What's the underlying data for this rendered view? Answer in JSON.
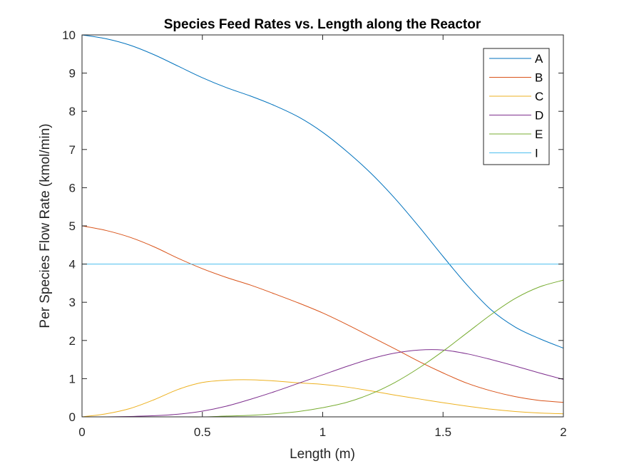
{
  "chart_data": {
    "type": "line",
    "title": "Species Feed Rates vs. Length along the Reactor",
    "xlabel": "Length (m)",
    "ylabel": "Per Species Flow Rate (kmol/min)",
    "xlim": [
      0,
      2
    ],
    "ylim": [
      0,
      10
    ],
    "xticks": [
      0,
      0.5,
      1,
      1.5,
      2
    ],
    "xtick_labels": [
      "0",
      "0.5",
      "1",
      "1.5",
      "2"
    ],
    "yticks": [
      0,
      1,
      2,
      3,
      4,
      5,
      6,
      7,
      8,
      9,
      10
    ],
    "ytick_labels": [
      "0",
      "1",
      "2",
      "3",
      "4",
      "5",
      "6",
      "7",
      "8",
      "9",
      "10"
    ],
    "grid": false,
    "legend_position": "top-right",
    "x": [
      0,
      0.1,
      0.2,
      0.3,
      0.4,
      0.5,
      0.6,
      0.7,
      0.8,
      0.9,
      1.0,
      1.1,
      1.2,
      1.3,
      1.4,
      1.5,
      1.6,
      1.7,
      1.8,
      1.9,
      2.0
    ],
    "series": [
      {
        "name": "A",
        "color": "#0072BD",
        "values": [
          10.0,
          9.9,
          9.73,
          9.48,
          9.18,
          8.88,
          8.62,
          8.4,
          8.15,
          7.85,
          7.45,
          6.95,
          6.38,
          5.72,
          4.98,
          4.2,
          3.45,
          2.8,
          2.35,
          2.05,
          1.8
        ]
      },
      {
        "name": "B",
        "color": "#D95319",
        "values": [
          5.0,
          4.88,
          4.7,
          4.45,
          4.15,
          3.88,
          3.65,
          3.45,
          3.22,
          2.98,
          2.72,
          2.42,
          2.1,
          1.78,
          1.45,
          1.15,
          0.88,
          0.68,
          0.53,
          0.43,
          0.38
        ]
      },
      {
        "name": "C",
        "color": "#EDB120",
        "values": [
          0.0,
          0.08,
          0.22,
          0.45,
          0.72,
          0.9,
          0.96,
          0.97,
          0.94,
          0.89,
          0.85,
          0.78,
          0.68,
          0.57,
          0.47,
          0.37,
          0.28,
          0.2,
          0.14,
          0.1,
          0.08
        ]
      },
      {
        "name": "D",
        "color": "#7E2F8E",
        "values": [
          0.0,
          0.0,
          0.01,
          0.03,
          0.07,
          0.15,
          0.28,
          0.46,
          0.66,
          0.88,
          1.1,
          1.32,
          1.52,
          1.67,
          1.75,
          1.75,
          1.65,
          1.5,
          1.33,
          1.15,
          0.98
        ]
      },
      {
        "name": "E",
        "color": "#77AC30",
        "values": [
          0.0,
          0.0,
          0.0,
          0.0,
          0.0,
          0.0,
          0.02,
          0.04,
          0.08,
          0.14,
          0.24,
          0.38,
          0.6,
          0.9,
          1.28,
          1.72,
          2.2,
          2.68,
          3.1,
          3.4,
          3.58
        ]
      },
      {
        "name": "I",
        "color": "#4DBEEE",
        "values": [
          4.0,
          4.0,
          4.0,
          4.0,
          4.0,
          4.0,
          4.0,
          4.0,
          4.0,
          4.0,
          4.0,
          4.0,
          4.0,
          4.0,
          4.0,
          4.0,
          4.0,
          4.0,
          4.0,
          4.0,
          4.0
        ]
      }
    ]
  }
}
